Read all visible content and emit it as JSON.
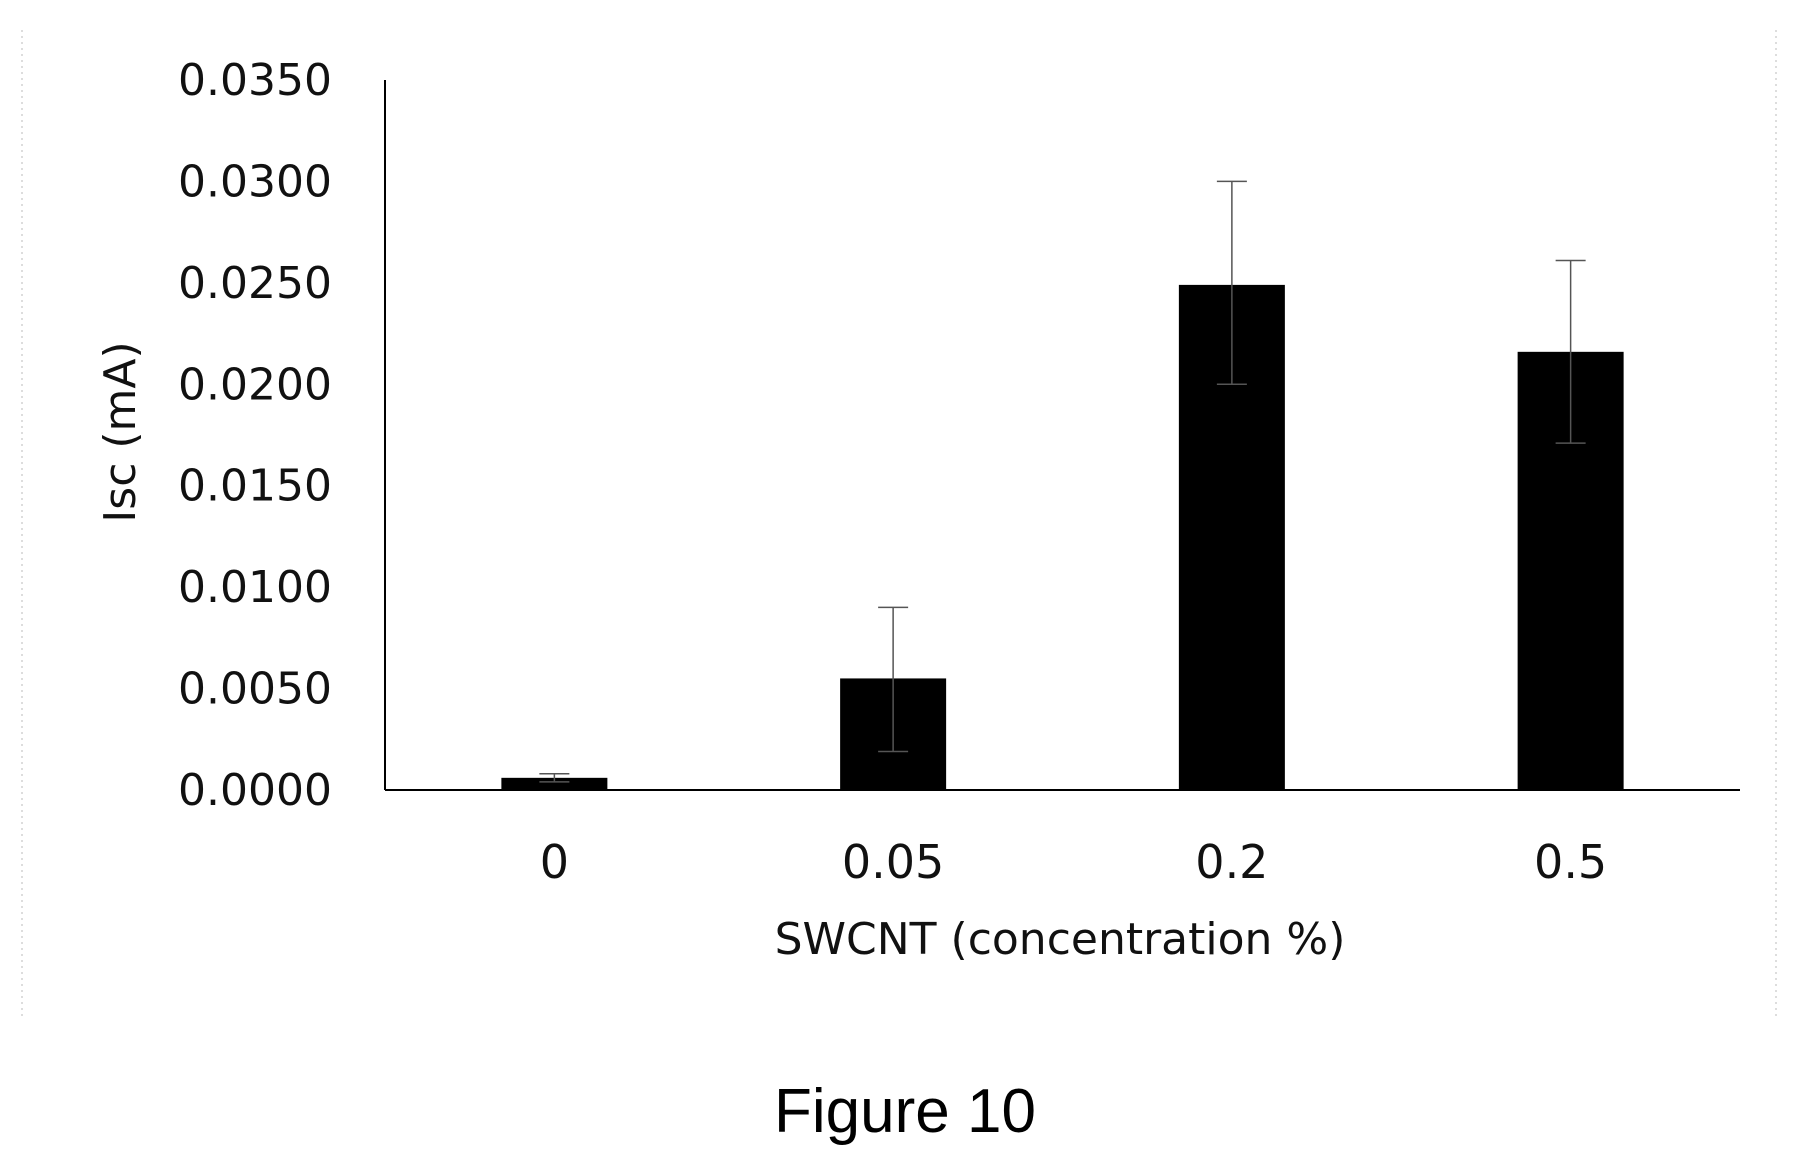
{
  "figure": {
    "caption": "Figure 10"
  },
  "chart_data": {
    "type": "bar",
    "categories": [
      "0",
      "0.05",
      "0.2",
      "0.5"
    ],
    "values": [
      0.0006,
      0.0055,
      0.0249,
      0.0216
    ],
    "error_bars": [
      {
        "low": 0.0004,
        "high": 0.0008
      },
      {
        "low": 0.0019,
        "high": 0.009
      },
      {
        "low": 0.02,
        "high": 0.03
      },
      {
        "low": 0.0171,
        "high": 0.0261
      }
    ],
    "xlabel": "SWCNT (concentration %)",
    "ylabel": "Isc (mA)",
    "ylim": [
      0,
      0.035
    ],
    "yticks": [
      "0.0000",
      "0.0050",
      "0.0100",
      "0.0150",
      "0.0200",
      "0.0250",
      "0.0300",
      "0.0350"
    ],
    "ytick_values": [
      0,
      0.005,
      0.01,
      0.015,
      0.02,
      0.025,
      0.03,
      0.035
    ],
    "grid": false,
    "bar_color": "#000000",
    "axis_color": "#000000",
    "error_bar_color": "#555555"
  }
}
